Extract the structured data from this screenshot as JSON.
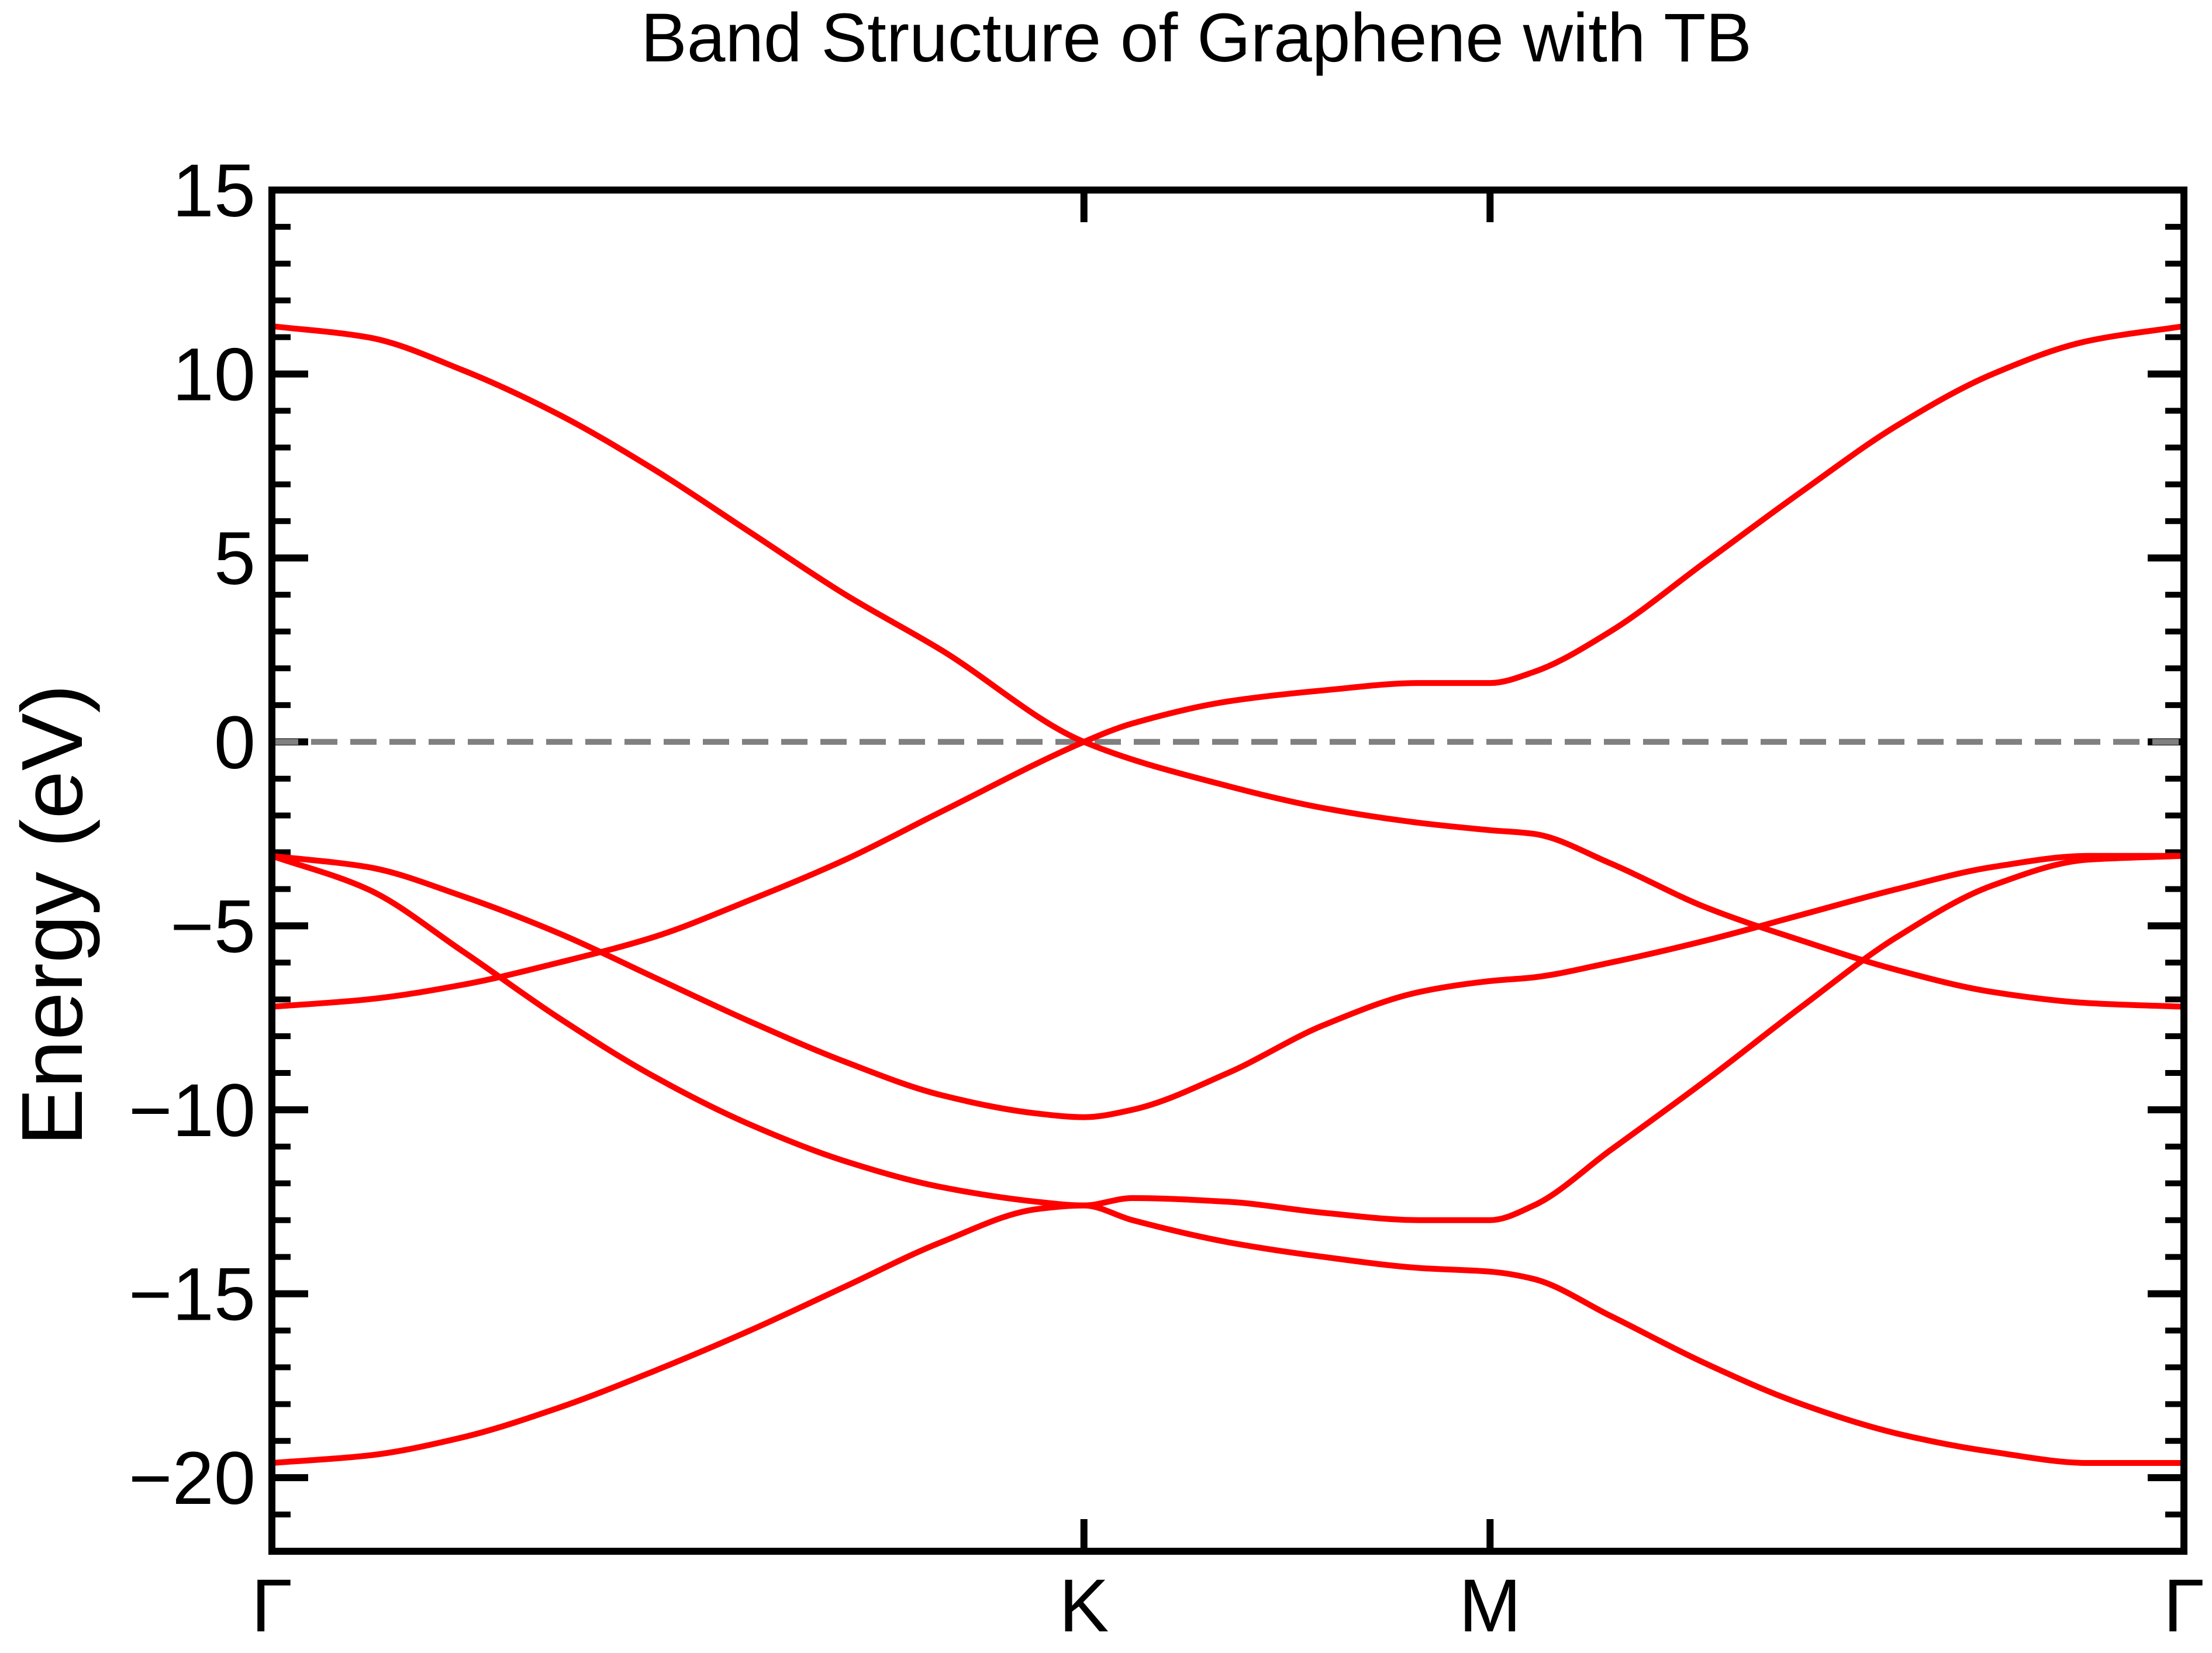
{
  "chart_data": {
    "type": "line",
    "title": "Band Structure of Graphene with TB",
    "xlabel": "",
    "ylabel": "Energy (eV)",
    "ylim": [
      -22,
      15
    ],
    "xlim": [
      0,
      1
    ],
    "x_ticks": [
      {
        "label": "Γ",
        "value": 0
      },
      {
        "label": "K",
        "value": 0.4247
      },
      {
        "label": "M",
        "value": 0.6371
      },
      {
        "label": "Γ",
        "value": 1
      }
    ],
    "y_ticks": [
      {
        "label": "15",
        "value": 15
      },
      {
        "label": "10",
        "value": 10
      },
      {
        "label": "5",
        "value": 5
      },
      {
        "label": "0",
        "value": 0
      },
      {
        "label": "−5",
        "value": -5
      },
      {
        "label": "−10",
        "value": -10
      },
      {
        "label": "−15",
        "value": -15
      },
      {
        "label": "−20",
        "value": -20
      }
    ],
    "y_minor_step": 1,
    "fermi_level": 0,
    "grid": false,
    "colors": {
      "bands": "#ff0000",
      "fermi_line": "#808080",
      "axes": "#000000"
    },
    "series": [
      {
        "x": [
          0,
          0.05,
          0.1,
          0.15,
          0.2,
          0.25,
          0.3,
          0.35,
          0.4247,
          0.5,
          0.55,
          0.6,
          0.6371,
          0.66,
          0.7,
          0.75,
          0.8,
          0.85,
          0.9,
          0.95,
          1
        ],
        "values": [
          11.3,
          11.0,
          10.1,
          8.9,
          7.4,
          5.7,
          4.0,
          2.5,
          0.0,
          -1.2,
          -1.8,
          -2.2,
          -2.4,
          -2.5,
          -3.3,
          -4.5,
          -5.4,
          -6.2,
          -6.8,
          -7.1,
          -7.2
        ]
      },
      {
        "x": [
          0,
          0.05,
          0.1,
          0.15,
          0.2,
          0.25,
          0.3,
          0.35,
          0.4247,
          0.45,
          0.5,
          0.55,
          0.6,
          0.6371,
          0.66,
          0.7,
          0.75,
          0.8,
          0.85,
          0.9,
          0.95,
          1
        ],
        "values": [
          -7.2,
          -7.0,
          -6.6,
          -6.0,
          -5.3,
          -4.3,
          -3.2,
          -1.9,
          0.0,
          0.5,
          1.1,
          1.4,
          1.6,
          1.6,
          1.9,
          3.0,
          4.9,
          6.8,
          8.6,
          10.0,
          10.9,
          11.3
        ]
      },
      {
        "x": [
          0,
          0.05,
          0.1,
          0.15,
          0.2,
          0.25,
          0.3,
          0.35,
          0.4,
          0.4247,
          0.45,
          0.5,
          0.55,
          0.6,
          0.6371,
          0.66,
          0.7,
          0.75,
          0.8,
          0.85,
          0.9,
          0.95,
          1
        ],
        "values": [
          -3.1,
          -3.4,
          -4.2,
          -5.2,
          -6.4,
          -7.6,
          -8.7,
          -9.6,
          -10.1,
          -10.2,
          -10.0,
          -9.0,
          -7.7,
          -6.8,
          -6.5,
          -6.4,
          -6.0,
          -5.4,
          -4.7,
          -4.0,
          -3.4,
          -3.1,
          -3.1
        ]
      },
      {
        "x": [
          0,
          0.05,
          0.1,
          0.15,
          0.2,
          0.25,
          0.3,
          0.35,
          0.4,
          0.4247,
          0.45,
          0.5,
          0.55,
          0.6,
          0.6371,
          0.66,
          0.7,
          0.75,
          0.8,
          0.85,
          0.9,
          0.95,
          1
        ],
        "values": [
          -3.1,
          -4.0,
          -5.7,
          -7.5,
          -9.1,
          -10.4,
          -11.4,
          -12.1,
          -12.5,
          -12.6,
          -12.4,
          -12.5,
          -12.8,
          -13.0,
          -13.0,
          -12.6,
          -11.1,
          -9.2,
          -7.2,
          -5.3,
          -3.9,
          -3.2,
          -3.1
        ]
      },
      {
        "x": [
          0,
          0.05,
          0.1,
          0.15,
          0.2,
          0.25,
          0.3,
          0.35,
          0.4,
          0.4247,
          0.45,
          0.5,
          0.55,
          0.6,
          0.6371,
          0.66,
          0.7,
          0.75,
          0.8,
          0.85,
          0.9,
          0.95,
          1
        ],
        "values": [
          -19.6,
          -19.4,
          -18.9,
          -18.1,
          -17.1,
          -16.0,
          -14.8,
          -13.6,
          -12.7,
          -12.6,
          -13.0,
          -13.6,
          -14.0,
          -14.3,
          -14.4,
          -14.6,
          -15.6,
          -16.9,
          -18.0,
          -18.8,
          -19.3,
          -19.6,
          -19.6
        ]
      }
    ]
  }
}
